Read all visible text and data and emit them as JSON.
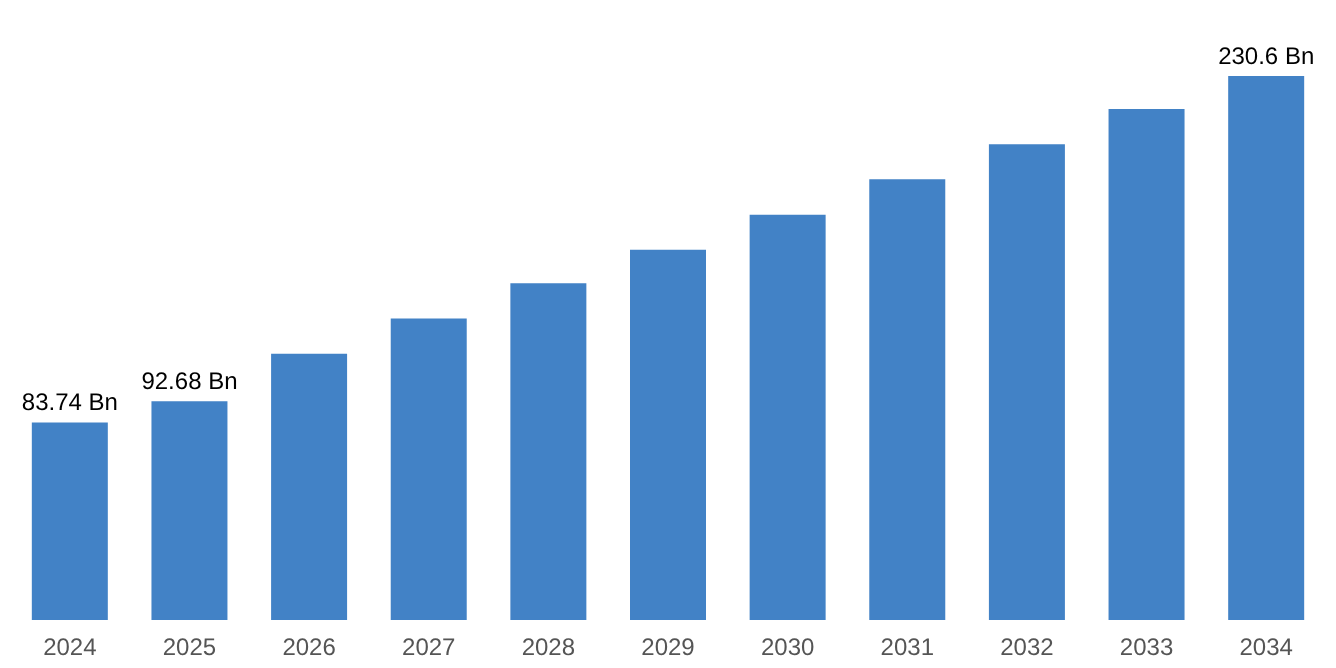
{
  "chart_data": {
    "type": "bar",
    "categories": [
      "2024",
      "2025",
      "2026",
      "2027",
      "2028",
      "2029",
      "2030",
      "2031",
      "2032",
      "2033",
      "2034"
    ],
    "values": [
      83.74,
      92.68,
      112.9,
      127.8,
      142.8,
      156.9,
      171.8,
      186.8,
      201.7,
      216.6,
      230.6
    ],
    "value_labels": [
      "83.74 Bn",
      "92.68 Bn",
      null,
      null,
      null,
      null,
      null,
      null,
      null,
      null,
      "230.6 Bn"
    ],
    "color": "#4282c6",
    "grid": false
  }
}
